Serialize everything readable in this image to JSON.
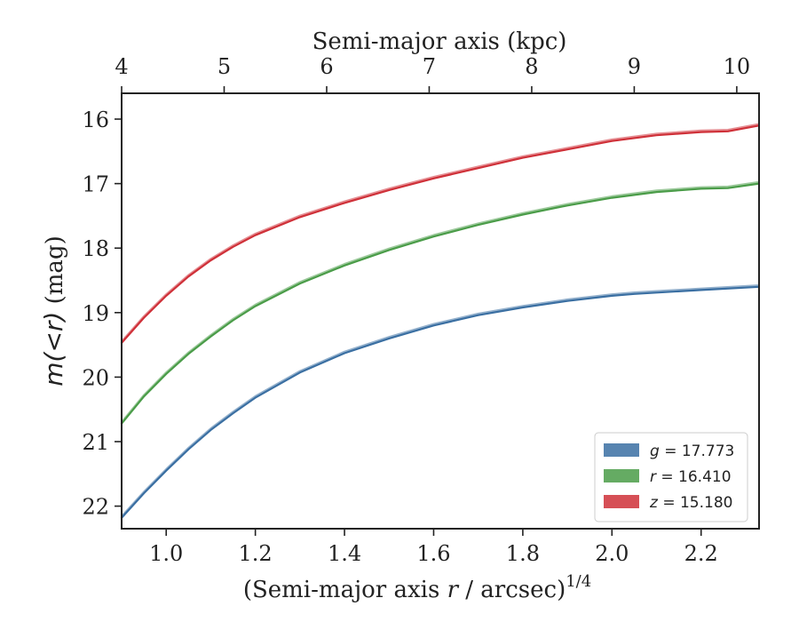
{
  "chart_data": {
    "type": "line",
    "title": "",
    "xlabel": "(Semi-major axis r / arcsec)",
    "xlabel_exponent": "1/4",
    "ylabel": "m(<r) (mag)",
    "top_xlabel": "Semi-major axis (kpc)",
    "xlim": [
      0.9,
      2.33
    ],
    "ylim": [
      22.35,
      15.6
    ],
    "y_inverted": true,
    "grid": false,
    "legend_position": "lower-right",
    "x_ticks": [
      1.0,
      1.2,
      1.4,
      1.6,
      1.8,
      2.0,
      2.2
    ],
    "x_tick_labels": [
      "1.0",
      "1.2",
      "1.4",
      "1.6",
      "1.8",
      "2.0",
      "2.2"
    ],
    "y_ticks": [
      16,
      17,
      18,
      19,
      20,
      21,
      22
    ],
    "y_tick_labels": [
      "16",
      "17",
      "18",
      "19",
      "20",
      "21",
      "22"
    ],
    "top_x_ticks_kpc": [
      4,
      5,
      6,
      7,
      8,
      9,
      10
    ],
    "top_x_tick_positions": [
      0.9,
      1.13,
      1.36,
      1.59,
      1.82,
      2.05,
      2.28
    ],
    "top_x_tick_labels": [
      "4",
      "5",
      "6",
      "7",
      "8",
      "9",
      "10"
    ],
    "series": [
      {
        "name": "g = 17.773",
        "legend_var": "g",
        "legend_value": "17.773",
        "color": "#3a6fa2",
        "x": [
          0.9,
          0.95,
          1.0,
          1.05,
          1.1,
          1.15,
          1.2,
          1.3,
          1.4,
          1.5,
          1.6,
          1.7,
          1.8,
          1.9,
          2.0,
          2.05,
          2.1,
          2.2,
          2.33
        ],
        "y": [
          22.18,
          21.8,
          21.45,
          21.12,
          20.82,
          20.56,
          20.32,
          19.93,
          19.63,
          19.4,
          19.2,
          19.04,
          18.92,
          18.82,
          18.74,
          18.71,
          18.69,
          18.65,
          18.6
        ]
      },
      {
        "name": "r = 16.410",
        "legend_var": "r",
        "legend_value": "16.410",
        "color": "#4a9c48",
        "x": [
          0.9,
          0.95,
          1.0,
          1.05,
          1.1,
          1.15,
          1.2,
          1.3,
          1.4,
          1.5,
          1.6,
          1.7,
          1.8,
          1.9,
          2.0,
          2.1,
          2.2,
          2.26,
          2.33
        ],
        "y": [
          20.72,
          20.3,
          19.95,
          19.64,
          19.37,
          19.12,
          18.9,
          18.55,
          18.27,
          18.03,
          17.82,
          17.64,
          17.48,
          17.34,
          17.22,
          17.13,
          17.08,
          17.07,
          17.0
        ]
      },
      {
        "name": "z = 15.180",
        "legend_var": "z",
        "legend_value": "15.180",
        "color": "#cf3038",
        "x": [
          0.9,
          0.95,
          1.0,
          1.05,
          1.1,
          1.15,
          1.2,
          1.3,
          1.4,
          1.5,
          1.6,
          1.7,
          1.8,
          1.9,
          2.0,
          2.1,
          2.2,
          2.26,
          2.33
        ],
        "y": [
          19.47,
          19.08,
          18.74,
          18.44,
          18.19,
          17.98,
          17.8,
          17.52,
          17.3,
          17.1,
          16.92,
          16.76,
          16.6,
          16.47,
          16.34,
          16.25,
          16.2,
          16.19,
          16.1
        ]
      }
    ]
  }
}
